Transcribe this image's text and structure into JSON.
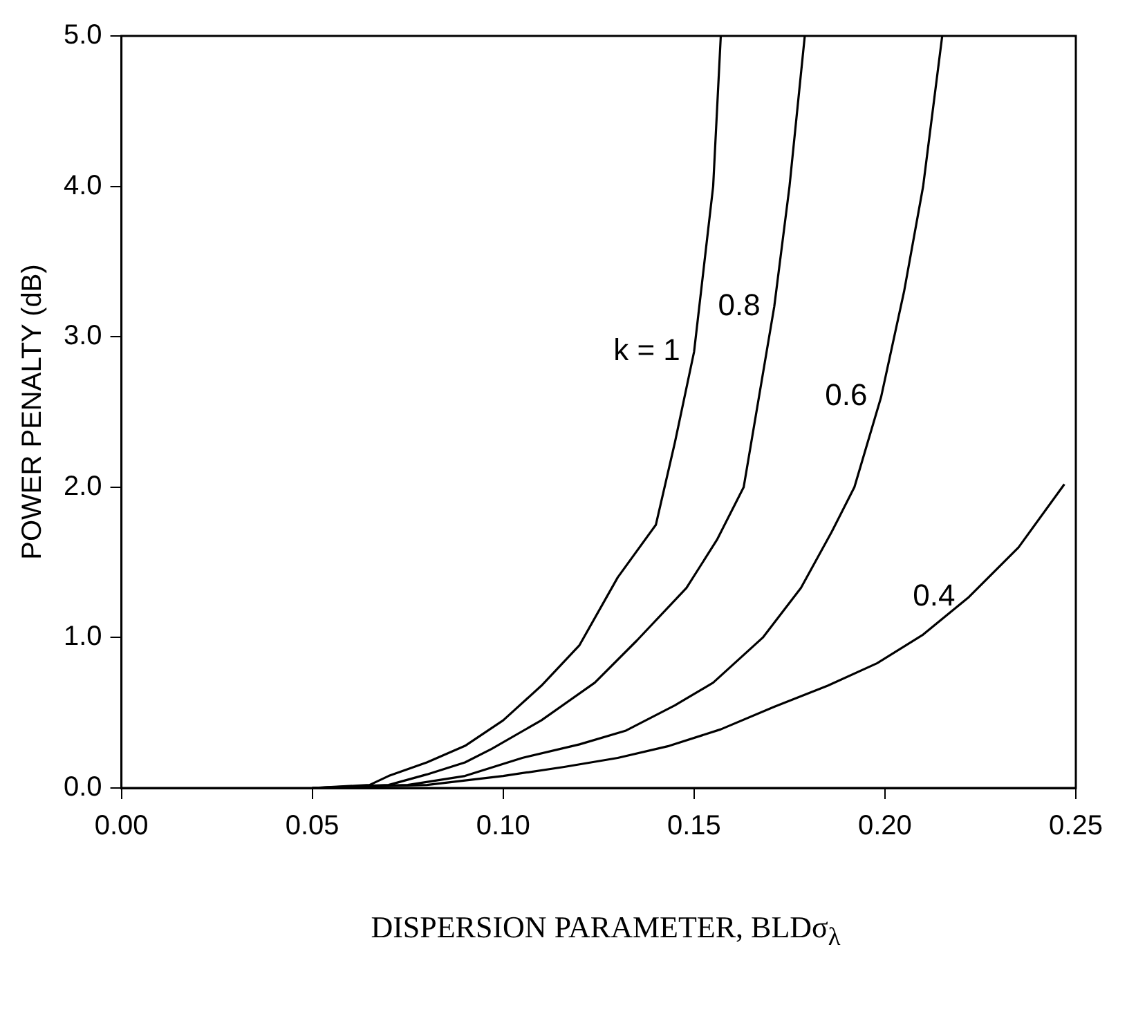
{
  "chart_data": {
    "type": "line",
    "xlabel": "DISPERSION PARAMETER, BLDσ$_{λ}$",
    "ylabel": "POWER PENALTY (dB)",
    "xlim": [
      0,
      0.25
    ],
    "xticks": [
      {
        "value": 0,
        "label": "0.00"
      },
      {
        "value": 0.05,
        "label": "0.05"
      },
      {
        "value": 0.1,
        "label": "0.10"
      },
      {
        "value": 0.15,
        "label": "0.15"
      },
      {
        "value": 0.2,
        "label": "0.20"
      },
      {
        "value": 0.25,
        "label": "0.25"
      }
    ],
    "ylim": [
      0,
      5
    ],
    "yticks": [
      {
        "value": 0,
        "label": "0.0"
      },
      {
        "value": 1,
        "label": "1.0"
      },
      {
        "value": 2,
        "label": "2.0"
      },
      {
        "value": 3,
        "label": "3.0"
      },
      {
        "value": 4,
        "label": "4.0"
      },
      {
        "value": 5,
        "label": "5.0"
      }
    ],
    "grid": false,
    "legend": false,
    "marker": "none",
    "line_style": "solid",
    "series": [
      {
        "name": "k = 1",
        "color": "#000000",
        "x": [
          0.05,
          0.065,
          0.07,
          0.08,
          0.09,
          0.1,
          0.11,
          0.12,
          0.13,
          0.14,
          0.145,
          0.15,
          0.155,
          0.157
        ],
        "values": [
          0,
          0.02,
          0.08,
          0.17,
          0.28,
          0.45,
          0.68,
          0.95,
          1.4,
          1.75,
          2.3,
          2.9,
          4.0,
          5.0
        ]
      },
      {
        "name": "0.8",
        "color": "#000000",
        "x": [
          0.05,
          0.07,
          0.08,
          0.09,
          0.097,
          0.11,
          0.124,
          0.135,
          0.148,
          0.156,
          0.163,
          0.167,
          0.171,
          0.175,
          0.179
        ],
        "values": [
          0,
          0.02,
          0.09,
          0.17,
          0.26,
          0.45,
          0.7,
          0.98,
          1.33,
          1.65,
          2.0,
          2.6,
          3.2,
          4.0,
          5.0
        ]
      },
      {
        "name": "0.6",
        "color": "#000000",
        "x": [
          0.05,
          0.075,
          0.09,
          0.105,
          0.12,
          0.132,
          0.145,
          0.155,
          0.168,
          0.178,
          0.186,
          0.192,
          0.199,
          0.205,
          0.21,
          0.215
        ],
        "values": [
          0,
          0.02,
          0.08,
          0.2,
          0.29,
          0.38,
          0.55,
          0.7,
          1.0,
          1.33,
          1.7,
          2.0,
          2.6,
          3.3,
          4.0,
          5.0
        ]
      },
      {
        "name": "0.4",
        "color": "#000000",
        "x": [
          0.05,
          0.08,
          0.1,
          0.116,
          0.13,
          0.1435,
          0.157,
          0.171,
          0.185,
          0.198,
          0.21,
          0.222,
          0.235,
          0.247
        ],
        "values": [
          0,
          0.02,
          0.08,
          0.14,
          0.2,
          0.28,
          0.39,
          0.54,
          0.68,
          0.83,
          1.02,
          1.27,
          1.6,
          2.02
        ]
      }
    ]
  }
}
